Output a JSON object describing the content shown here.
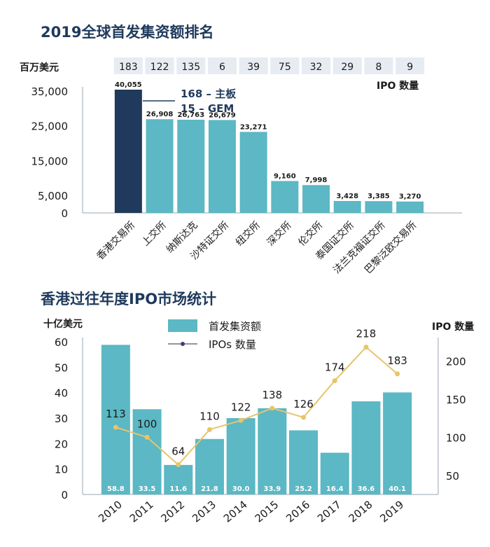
{
  "chart_data": [
    {
      "type": "bar",
      "title": "2019全球首发集资额排名",
      "ylabel": "百万美元",
      "ylim": [
        0,
        35000
      ],
      "yticks": [
        0,
        5000,
        15000,
        25000,
        35000
      ],
      "ytick_labels": [
        "0",
        "5,000",
        "15,000",
        "25,000",
        "35,000"
      ],
      "categories": [
        "香港交易所",
        "上交所",
        "纳斯达克",
        "沙特证交所",
        "纽交所",
        "深交所",
        "伦交所",
        "泰国证交所",
        "法兰克福证交所",
        "巴黎泛欧交易所"
      ],
      "values": [
        40055,
        26908,
        26763,
        26679,
        23271,
        9160,
        7998,
        3428,
        3385,
        3270
      ],
      "value_labels": [
        "40,055",
        "26,908",
        "26,763",
        "26,679",
        "23,271",
        "9,160",
        "7,998",
        "3,428",
        "3,385",
        "3,270"
      ],
      "ipo_counts": [
        "183",
        "122",
        "135",
        "6",
        "39",
        "75",
        "32",
        "29",
        "8",
        "9"
      ],
      "ipo_label": "IPO 数量",
      "annotation": [
        "168 – 主板",
        "15 – GEM"
      ]
    },
    {
      "type": "bar+line",
      "title": "香港过往年度IPO市场统计",
      "ylabel": "十亿美元",
      "y2label": "IPO 数量",
      "ylim": [
        0,
        60
      ],
      "yticks": [
        0,
        10,
        20,
        30,
        40,
        50,
        60
      ],
      "y2lim": [
        25,
        225
      ],
      "y2ticks": [
        50,
        100,
        150,
        200
      ],
      "categories": [
        "2010",
        "2011",
        "2012",
        "2013",
        "2014",
        "2015",
        "2016",
        "2017",
        "2018",
        "2019"
      ],
      "series": [
        {
          "name": "首发集资额",
          "type": "bar",
          "values": [
            58.8,
            33.5,
            11.6,
            21.8,
            30.0,
            33.9,
            25.2,
            16.4,
            36.6,
            40.1
          ],
          "labels": [
            "58.8",
            "33.5",
            "11.6",
            "21.8",
            "30.0",
            "33.9",
            "25.2",
            "16.4",
            "36.6",
            "40.1"
          ]
        },
        {
          "name": "IPOs 数量",
          "type": "line",
          "axis": "right",
          "values": [
            113,
            100,
            64,
            110,
            122,
            138,
            126,
            174,
            218,
            183
          ],
          "labels": [
            "113",
            "100",
            "64",
            "110",
            "122",
            "138",
            "126",
            "174",
            "218",
            "183"
          ]
        }
      ]
    }
  ],
  "colors": {
    "teal": "#5bb8c4",
    "navy": "#1f3a5c",
    "ipo_box": "#e6ecf2",
    "line": "#e8c46a",
    "axis": "#9aa5b1",
    "marker": "#4a3a6a"
  }
}
